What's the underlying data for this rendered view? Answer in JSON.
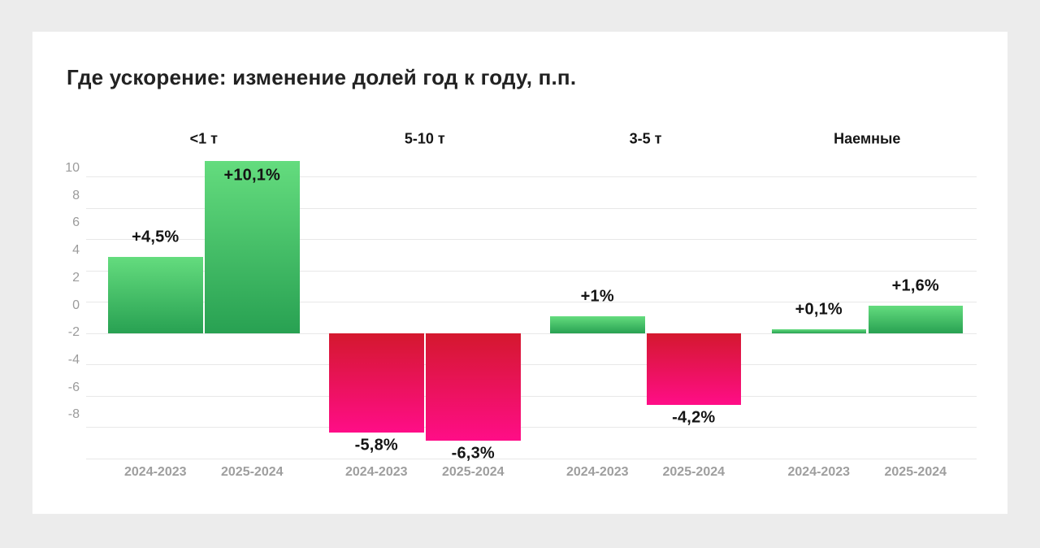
{
  "page": {
    "title": "Где ускорение: изменение долей год к году, п.п."
  },
  "colors": {
    "background": "#ececec",
    "card": "#ffffff",
    "grid": "#e8e8e8",
    "axis_text": "#9b9b9b",
    "x_axis_text": "#9e9e9e",
    "value_text": "#141414",
    "positive_top": "#64dc7e",
    "positive_bottom": "#28a152",
    "negative_top": "#d4182e",
    "negative_bottom": "#ff0d87"
  },
  "chart_data": {
    "type": "bar",
    "title": "Где ускорение: изменение долей год к году, п.п.",
    "ylabel": "",
    "xlabel": "",
    "grid": true,
    "legend": "none",
    "y_axis": {
      "ticks": [
        10,
        8,
        6,
        4,
        2,
        0,
        -2,
        -4,
        -6,
        -8
      ],
      "range_labeled": [
        -8,
        10
      ]
    },
    "groups": [
      {
        "name": "<1 т",
        "bars": [
          {
            "x": "2024-2023",
            "value": 4.5,
            "label": "+4,5%",
            "label_position": "above"
          },
          {
            "x": "2025-2024",
            "value": 10.1,
            "label": "+10,1%",
            "label_position": "inside-top"
          }
        ]
      },
      {
        "name": "5-10 т",
        "bars": [
          {
            "x": "2024-2023",
            "value": -5.8,
            "label": "-5,8%",
            "label_position": "below"
          },
          {
            "x": "2025-2024",
            "value": -6.3,
            "label": "-6,3%",
            "label_position": "below"
          }
        ]
      },
      {
        "name": "3-5 т",
        "bars": [
          {
            "x": "2024-2023",
            "value": 1.0,
            "label": "+1%",
            "label_position": "above"
          },
          {
            "x": "2025-2024",
            "value": -4.2,
            "label": "-4,2%",
            "label_position": "below"
          }
        ]
      },
      {
        "name": "Наемные",
        "bars": [
          {
            "x": "2024-2023",
            "value": 0.1,
            "label": "+0,1%",
            "label_position": "above"
          },
          {
            "x": "2025-2024",
            "value": 1.6,
            "label": "+1,6%",
            "label_position": "above"
          }
        ]
      }
    ]
  }
}
